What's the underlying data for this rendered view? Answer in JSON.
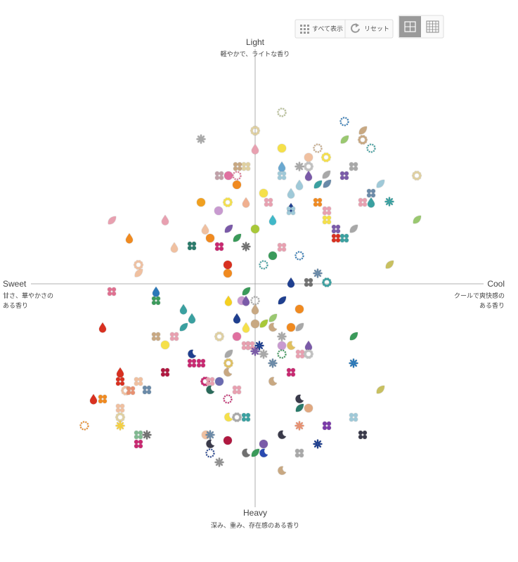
{
  "toolbar": {
    "show_all": "すべて表示",
    "reset": "リセット"
  },
  "chart_data": {
    "type": "scatter",
    "axis_labels": {
      "top": "Light",
      "top_sub": "軽やかで、ライトな香り",
      "left": "Sweet",
      "left_sub": [
        "甘さ、華やかさの",
        "ある香り"
      ],
      "right": "Cool",
      "right_sub": [
        "クールで爽快感の",
        "ある香り"
      ],
      "bottom": "Heavy",
      "bottom_sub": "深み、重み、存在感のある香り"
    },
    "xlim": [
      -320,
      320
    ],
    "ylim": [
      -320,
      320
    ],
    "x": [
      38,
      127,
      153,
      0,
      -77,
      38,
      0,
      89,
      127,
      153,
      165,
      76,
      101,
      -25,
      -13,
      38,
      63,
      76,
      140,
      -51,
      -38,
      -26,
      38,
      76,
      101,
      127,
      230,
      -26,
      63,
      89,
      102,
      178,
      12,
      51,
      165,
      -77,
      -39,
      -13,
      19,
      89,
      153,
      165,
      191,
      51,
      51,
      102,
      -52,
      -204,
      -128,
      25,
      102,
      230,
      -38,
      0,
      -71,
      115,
      140,
      -179,
      -64,
      -26,
      115,
      127,
      -115,
      -90,
      -51,
      -13,
      38,
      25,
      63,
      -166,
      -39,
      12,
      191,
      -166,
      -39,
      89,
      51,
      76,
      102,
      -204,
      -141,
      -13,
      -141,
      -38,
      -19,
      -13,
      0,
      38,
      63,
      0,
      -102,
      -90,
      -26,
      25,
      -217,
      -102,
      -13,
      0,
      12,
      25,
      51,
      63,
      -141,
      -115,
      -51,
      -26,
      38,
      140,
      -128,
      -13,
      -7,
      6,
      0,
      38,
      51,
      76,
      38,
      64,
      76,
      12,
      -90,
      -38,
      -90,
      -77,
      -38,
      25,
      140,
      -128,
      -192,
      51,
      -39,
      -192,
      -166,
      -71,
      -64,
      -51,
      25,
      -184,
      -177,
      -154,
      -64,
      -26,
      178,
      -230,
      -217,
      -39,
      63,
      -192,
      63,
      76,
      -192,
      -38,
      -26,
      -13,
      140,
      -243,
      -192,
      63,
      102,
      -166,
      -154,
      -70,
      -64,
      -39,
      38,
      153,
      -166,
      -64,
      12,
      89,
      -64,
      -13,
      0,
      12,
      63,
      -51,
      38
    ],
    "y": [
      244,
      231,
      218,
      218,
      206,
      193,
      192,
      193,
      205,
      205,
      193,
      180,
      180,
      167,
      167,
      167,
      167,
      167,
      167,
      154,
      154,
      154,
      154,
      154,
      155,
      154,
      154,
      141,
      141,
      141,
      142,
      142,
      129,
      129,
      129,
      116,
      116,
      116,
      116,
      116,
      116,
      116,
      117,
      108,
      104,
      104,
      104,
      90,
      91,
      91,
      91,
      91,
      78,
      78,
      78,
      78,
      78,
      65,
      65,
      65,
      65,
      65,
      52,
      54,
      53,
      53,
      52,
      40,
      40,
      27,
      27,
      27,
      27,
      15,
      15,
      15,
      2,
      2,
      2,
      -11,
      -11,
      -11,
      -24,
      -24,
      -24,
      -24,
      -24,
      -24,
      -36,
      -36,
      -36,
      -49,
      -49,
      -49,
      -62,
      -62,
      -62,
      -57,
      -57,
      -62,
      -62,
      -62,
      -75,
      -75,
      -75,
      -75,
      -75,
      -75,
      -87,
      -88,
      -88,
      -88,
      -96,
      -88,
      -88,
      -88,
      -100,
      -100,
      -100,
      -100,
      -100,
      -100,
      -113,
      -113,
      -113,
      -113,
      -113,
      -126,
      -126,
      -126,
      -126,
      -139,
      -139,
      -139,
      -139,
      -139,
      -139,
      -152,
      -152,
      -151,
      -151,
      -151,
      -151,
      -164,
      -164,
      -164,
      -164,
      -177,
      -177,
      -177,
      -190,
      -190,
      -190,
      -190,
      -190,
      -202,
      -202,
      -202,
      -202,
      -215,
      -215,
      -215,
      -215,
      -223,
      -215,
      -215,
      -228,
      -228,
      -228,
      -228,
      -241,
      -241,
      -241,
      -241,
      -241,
      -254,
      -266
    ],
    "shapes": [
      "dotring",
      "dotring",
      "leaf",
      "ring",
      "flower",
      "circle",
      "drop",
      "dotring",
      "leaf",
      "ring",
      "dotring",
      "circle",
      "ring",
      "cross",
      "cross",
      "drop",
      "flower",
      "ring",
      "cross",
      "cross",
      "circle",
      "dotring",
      "cross",
      "drop",
      "leaf",
      "cross",
      "ring",
      "circle",
      "drop",
      "leaf",
      "leaf",
      "leaf",
      "circle",
      "drop",
      "cross",
      "circle",
      "ring",
      "drop",
      "cross",
      "cross",
      "cross",
      "drop",
      "flower",
      "drop",
      "cross",
      "cross",
      "circle",
      "leaf",
      "drop",
      "drop",
      "cross",
      "leaf",
      "leaf",
      "circle",
      "drop",
      "cross",
      "leaf",
      "drop",
      "circle",
      "leaf",
      "cross",
      "cross",
      "drop",
      "cross",
      "cross",
      "flower",
      "cross",
      "circle",
      "dotring",
      "ring",
      "circle",
      "dotring",
      "leaf",
      "leaf",
      "circle",
      "flower",
      "drop",
      "cross",
      "ring",
      "cross",
      "drop",
      "leaf",
      "cross",
      "drop",
      "circle",
      "drop",
      "dotring",
      "leaf",
      "circle",
      "drop",
      "drop",
      "drop",
      "drop",
      "leaf",
      "drop",
      "leaf",
      "drop",
      "circle",
      "leaf",
      "moon",
      "circle",
      "leaf",
      "cross",
      "cross",
      "ring",
      "circle",
      "flower",
      "leaf",
      "circle",
      "cross",
      "cross",
      "flower",
      "flower",
      "circle",
      "moon",
      "drop",
      "dotring",
      "cross",
      "ring",
      "flower",
      "moon",
      "leaf",
      "cross",
      "cross",
      "ring",
      "flower",
      "flower",
      "cross",
      "drop",
      "cross",
      "moon",
      "cross",
      "cross",
      "ring",
      "cross",
      "circle",
      "moon",
      "ring",
      "cross",
      "cross",
      "moon",
      "cross",
      "leaf",
      "drop",
      "cross",
      "dotring",
      "moon",
      "cross",
      "leaf",
      "circle",
      "ring",
      "moon",
      "ring",
      "cross",
      "cross",
      "dotring",
      "flower",
      "flower",
      "cross",
      "cross",
      "flower",
      "circle",
      "flower",
      "circle",
      "moon",
      "cross",
      "cross",
      "moon",
      "circle",
      "flower",
      "dotring",
      "moon",
      "leaf",
      "moon",
      "cross",
      "flower",
      "moon"
    ],
    "colors": [
      "#b8c090",
      "#2a78b8",
      "#c8a882",
      "#e0d0a0",
      "#a8a8a8",
      "#f5e04a",
      "#e8a0b0",
      "#c8a882",
      "#9ac870",
      "#c8a882",
      "#3aa0a0",
      "#f0c0a0",
      "#f5e04a",
      "#c8a882",
      "#e0d0a0",
      "#6aa8d0",
      "#a8a8a8",
      "#c0c0c0",
      "#a8a8a8",
      "#c0a0a8",
      "#e070a0",
      "#e07090",
      "#9fc9d8",
      "#7a5aa8",
      "#a8a8a8",
      "#7a5aa8",
      "#e0d0a0",
      "#f08a20",
      "#9fc9d8",
      "#3aa0a0",
      "#6a8aa8",
      "#9fc9d8",
      "#f5e04a",
      "#9fc9d8",
      "#6a8aa8",
      "#f0a020",
      "#f5e04a",
      "#f0b090",
      "#e8a0b0",
      "#f08a20",
      "#e8a0b0",
      "#3aa0a0",
      "#3aa0a0",
      "#1f3f8f",
      "#9fc9d8",
      "#e8a0b0",
      "#c89ad0",
      "#e8a0b0",
      "#e8a0b0",
      "#40b8c8",
      "#f5e04a",
      "#9ac870",
      "#7a5aa8",
      "#a8c838",
      "#f0c0a0",
      "#7a5aa8",
      "#a8a8a8",
      "#f08a20",
      "#f08a20",
      "#3a9a5a",
      "#d83020",
      "#3aa0a0",
      "#f0c0a0",
      "#2a7a6a",
      "#c82870",
      "#707070",
      "#e8a0b0",
      "#3a9a5a",
      "#2a78b8",
      "#f0c0a0",
      "#d83020",
      "#3aa0a0",
      "#c8c060",
      "#f0c0a0",
      "#f08a20",
      "#6a8aa8",
      "#1f3f8f",
      "#707070",
      "#3aa0a0",
      "#e07090",
      "#2a78b8",
      "#3a9a5a",
      "#3a9a5a",
      "#f5d020",
      "#c89ad0",
      "#7a5aa8",
      "#a8a8a8",
      "#1f3f8f",
      "#f08a20",
      "#c8a882",
      "#3aa0a0",
      "#3aa0a0",
      "#1f3f8f",
      "#9ac870",
      "#d83020",
      "#3aa0a0",
      "#f5e04a",
      "#c8a882",
      "#a8c838",
      "#c8a882",
      "#f08a20",
      "#a8a8a8",
      "#c8a882",
      "#e8a0b0",
      "#e0d0a0",
      "#e070a0",
      "#a8a8a8",
      "#3a9a5a",
      "#f5e04a",
      "#e8a0b0",
      "#e8a0b0",
      "#1f3f8f",
      "#7a5aa8",
      "#c89ad0",
      "#e0c060",
      "#7a5aa8",
      "#3a9a5a",
      "#e8a0b0",
      "#c0c0c0",
      "#a8a8a8",
      "#1f3f8f",
      "#a8a8a8",
      "#c82870",
      "#c82870",
      "#e0c060",
      "#6a8aa8",
      "#2a78b8",
      "#b01840",
      "#d83020",
      "#c82870",
      "#c8a882",
      "#d83020",
      "#f0c0a0",
      "#c82870",
      "#e8a0b0",
      "#6a6ab0",
      "#c8a882",
      "#f0c0a0",
      "#e89070",
      "#6a8aa8",
      "#2a6a5a",
      "#e8a0b0",
      "#c8c060",
      "#d83020",
      "#f08a20",
      "#c82870",
      "#3a3a4a",
      "#f0c0a0",
      "#2a7a6a",
      "#e0a880",
      "#e0d0a0",
      "#f5e04a",
      "#a8a8a8",
      "#3aa0a0",
      "#9fc9d8",
      "#f08a20",
      "#f5d040",
      "#e89070",
      "#7a3aa8",
      "#80b890",
      "#707070",
      "#f0c0a0",
      "#6a8aa8",
      "#b01840",
      "#3a3a4a",
      "#3a3a4a",
      "#c82870",
      "#3a3a4a",
      "#7a5aa8",
      "#1f3f8f",
      "#1f3f8f",
      "#707070",
      "#3a9a5a",
      "#2a4ab0",
      "#a8a8a8",
      "#909090",
      "#c8a882"
    ]
  }
}
